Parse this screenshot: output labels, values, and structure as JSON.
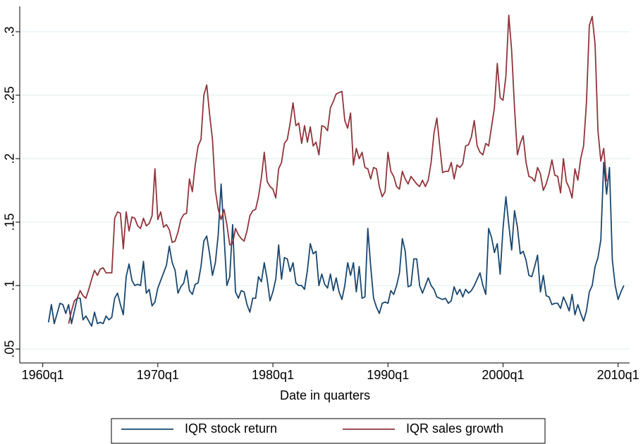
{
  "chart_data": {
    "type": "line",
    "x_label": "Date in quarters",
    "x": [
      2,
      3,
      4,
      5,
      6,
      7,
      8,
      9,
      10,
      11,
      12,
      13,
      14,
      15,
      16,
      17,
      18,
      19,
      20,
      21,
      22,
      23,
      24,
      25,
      26,
      27,
      28,
      29,
      30,
      31,
      32,
      33,
      34,
      35,
      36,
      37,
      38,
      39,
      40,
      41,
      42,
      43,
      44,
      45,
      46,
      47,
      48,
      49,
      50,
      51,
      52,
      53,
      54,
      55,
      56,
      57,
      58,
      59,
      60,
      61,
      62,
      63,
      64,
      65,
      66,
      67,
      68,
      69,
      70,
      71,
      72,
      73,
      74,
      75,
      76,
      77,
      78,
      79,
      80,
      81,
      82,
      83,
      84,
      85,
      86,
      87,
      88,
      89,
      90,
      91,
      92,
      93,
      94,
      95,
      96,
      97,
      98,
      99,
      100,
      101,
      102,
      103,
      104,
      105,
      106,
      107,
      108,
      109,
      110,
      111,
      112,
      113,
      114,
      115,
      116,
      117,
      118,
      119,
      120,
      121,
      122,
      123,
      124,
      125,
      126,
      127,
      128,
      129,
      130,
      131,
      132,
      133,
      134,
      135,
      136,
      137,
      138,
      139,
      140,
      141,
      142,
      143,
      144,
      145,
      146,
      147,
      148,
      149,
      150,
      151,
      152,
      153,
      154,
      155,
      156,
      157,
      158,
      159,
      160,
      161,
      162,
      163,
      164,
      165,
      166,
      167,
      168,
      169,
      170,
      171,
      172,
      173,
      174,
      175,
      176,
      177,
      178,
      179,
      180,
      181,
      182,
      183,
      184,
      185,
      186,
      187,
      188,
      189,
      190,
      191,
      192,
      193,
      194,
      195,
      196,
      197,
      198,
      199,
      200,
      201,
      202
    ],
    "series": [
      {
        "name": "IQR stock return",
        "color": "#1a476f",
        "values": [
          0.071,
          0.085,
          0.07,
          0.078,
          0.086,
          0.085,
          0.078,
          0.085,
          0.07,
          0.08,
          0.09,
          0.09,
          0.073,
          0.076,
          0.072,
          0.068,
          0.079,
          0.07,
          0.071,
          0.07,
          0.076,
          0.073,
          0.075,
          0.09,
          0.094,
          0.085,
          0.077,
          0.107,
          0.117,
          0.104,
          0.1,
          0.101,
          0.1,
          0.119,
          0.094,
          0.097,
          0.084,
          0.087,
          0.098,
          0.104,
          0.11,
          0.116,
          0.131,
          0.118,
          0.112,
          0.094,
          0.099,
          0.102,
          0.112,
          0.096,
          0.093,
          0.101,
          0.102,
          0.115,
          0.135,
          0.139,
          0.125,
          0.108,
          0.118,
          0.14,
          0.18,
          0.14,
          0.1,
          0.107,
          0.148,
          0.095,
          0.09,
          0.096,
          0.095,
          0.085,
          0.079,
          0.09,
          0.09,
          0.107,
          0.103,
          0.118,
          0.105,
          0.088,
          0.095,
          0.105,
          0.132,
          0.105,
          0.122,
          0.121,
          0.111,
          0.118,
          0.102,
          0.1,
          0.1,
          0.097,
          0.112,
          0.133,
          0.125,
          0.127,
          0.1,
          0.109,
          0.101,
          0.098,
          0.109,
          0.096,
          0.106,
          0.095,
          0.089,
          0.1,
          0.118,
          0.108,
          0.118,
          0.095,
          0.115,
          0.09,
          0.091,
          0.145,
          0.115,
          0.09,
          0.083,
          0.078,
          0.086,
          0.087,
          0.086,
          0.096,
          0.093,
          0.1,
          0.11,
          0.137,
          0.127,
          0.099,
          0.1,
          0.121,
          0.121,
          0.1,
          0.094,
          0.1,
          0.106,
          0.1,
          0.097,
          0.091,
          0.09,
          0.089,
          0.09,
          0.086,
          0.088,
          0.099,
          0.093,
          0.097,
          0.091,
          0.097,
          0.094,
          0.096,
          0.1,
          0.105,
          0.11,
          0.1,
          0.093,
          0.145,
          0.138,
          0.126,
          0.133,
          0.109,
          0.145,
          0.17,
          0.148,
          0.128,
          0.159,
          0.146,
          0.125,
          0.127,
          0.12,
          0.108,
          0.107,
          0.115,
          0.124,
          0.095,
          0.108,
          0.092,
          0.091,
          0.085,
          0.086,
          0.086,
          0.082,
          0.091,
          0.086,
          0.08,
          0.093,
          0.077,
          0.085,
          0.078,
          0.072,
          0.08,
          0.095,
          0.1,
          0.115,
          0.122,
          0.136,
          0.197,
          0.172,
          0.193,
          0.12,
          0.1,
          0.089,
          0.095,
          0.1
        ]
      },
      {
        "name": "IQR sales growth",
        "color": "#90353b",
        "values": [
          null,
          null,
          null,
          null,
          null,
          null,
          null,
          0.07,
          0.08,
          0.088,
          0.09,
          0.096,
          0.092,
          0.09,
          0.097,
          0.105,
          0.112,
          0.108,
          0.113,
          0.114,
          0.11,
          0.11,
          0.11,
          0.153,
          0.158,
          0.157,
          0.129,
          0.158,
          0.143,
          0.154,
          0.153,
          0.147,
          0.145,
          0.153,
          0.147,
          0.149,
          0.155,
          0.192,
          0.152,
          0.158,
          0.146,
          0.148,
          0.144,
          0.134,
          0.135,
          0.142,
          0.152,
          0.156,
          0.157,
          0.184,
          0.174,
          0.195,
          0.21,
          0.215,
          0.25,
          0.258,
          0.235,
          0.215,
          0.175,
          0.16,
          0.152,
          0.16,
          0.148,
          0.132,
          0.133,
          0.145,
          0.14,
          0.137,
          0.135,
          0.143,
          0.155,
          0.159,
          0.16,
          0.17,
          0.185,
          0.205,
          0.182,
          0.178,
          0.176,
          0.169,
          0.192,
          0.197,
          0.212,
          0.215,
          0.228,
          0.244,
          0.226,
          0.228,
          0.212,
          0.226,
          0.213,
          0.225,
          0.21,
          0.213,
          0.203,
          0.226,
          0.225,
          0.222,
          0.24,
          0.245,
          0.251,
          0.252,
          0.253,
          0.23,
          0.224,
          0.236,
          0.195,
          0.208,
          0.2,
          0.205,
          0.193,
          0.192,
          0.184,
          0.193,
          0.192,
          0.178,
          0.17,
          0.174,
          0.205,
          0.19,
          0.186,
          0.178,
          0.176,
          0.19,
          0.184,
          0.18,
          0.186,
          0.183,
          0.18,
          0.178,
          0.183,
          0.178,
          0.183,
          0.197,
          0.22,
          0.232,
          0.21,
          0.189,
          0.19,
          0.19,
          0.197,
          0.184,
          0.195,
          0.193,
          0.196,
          0.21,
          0.211,
          0.217,
          0.23,
          0.21,
          0.205,
          0.203,
          0.212,
          0.21,
          0.225,
          0.24,
          0.275,
          0.248,
          0.246,
          0.265,
          0.313,
          0.285,
          0.24,
          0.203,
          0.212,
          0.218,
          0.197,
          0.186,
          0.185,
          0.182,
          0.193,
          0.188,
          0.175,
          0.18,
          0.188,
          0.199,
          0.187,
          0.186,
          0.173,
          0.2,
          0.182,
          0.177,
          0.169,
          0.192,
          0.183,
          0.2,
          0.21,
          0.244,
          0.305,
          0.312,
          0.29,
          0.222,
          0.198,
          0.208,
          0.182,
          null,
          null,
          null,
          null,
          null,
          null
        ]
      }
    ],
    "xlim": [
      -8,
      204
    ],
    "xticks": [
      {
        "value": 0,
        "label": "1960q1"
      },
      {
        "value": 40,
        "label": "1970q1"
      },
      {
        "value": 80,
        "label": "1980q1"
      },
      {
        "value": 120,
        "label": "1990q1"
      },
      {
        "value": 160,
        "label": "2000q1"
      },
      {
        "value": 200,
        "label": "2010q1"
      }
    ],
    "ylim": [
      0.039,
      0.32
    ],
    "yticks": [
      {
        "value": 0.05,
        "label": ".05"
      },
      {
        "value": 0.1,
        "label": ".1"
      },
      {
        "value": 0.15,
        "label": ".15"
      },
      {
        "value": 0.2,
        "label": ".2"
      },
      {
        "value": 0.25,
        "label": ".25"
      },
      {
        "value": 0.3,
        "label": ".3"
      }
    ],
    "grid": true,
    "legend": "bottom"
  }
}
